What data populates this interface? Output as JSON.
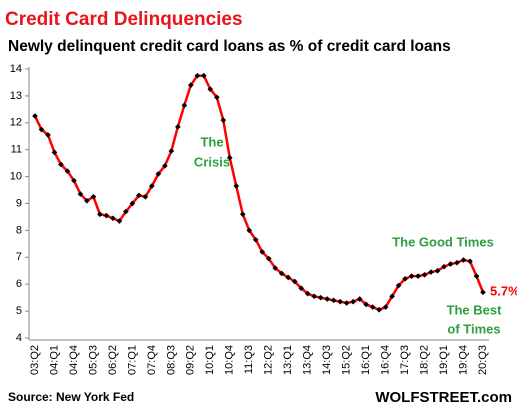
{
  "chart_data": {
    "type": "line",
    "title": "Credit Card  Delinquencies",
    "subtitle": "Newly delinquent credit card loans as % of credit card loans",
    "categories": [
      "03:Q2",
      null,
      null,
      "04:Q1",
      null,
      null,
      "04:Q4",
      null,
      null,
      "05:Q3",
      null,
      null,
      "06:Q2",
      null,
      null,
      "07:Q1",
      null,
      null,
      "07:Q4",
      null,
      null,
      "08:Q3",
      null,
      null,
      "09:Q2",
      null,
      null,
      "10:Q1",
      null,
      null,
      "10:Q4",
      null,
      null,
      "11:Q3",
      null,
      null,
      "12:Q2",
      null,
      null,
      "13:Q1",
      null,
      null,
      "13:Q4",
      null,
      null,
      "14:Q3",
      null,
      null,
      "15:Q2",
      null,
      null,
      "16:Q1",
      null,
      null,
      "16:Q4",
      null,
      null,
      "17:Q3",
      null,
      null,
      "18:Q2",
      null,
      null,
      "19:Q1",
      null,
      null,
      "19:Q4",
      null,
      null,
      "20:Q3"
    ],
    "series": [
      {
        "name": "Newly delinquent credit card loans",
        "color": "#ff0000",
        "marker_color": "#000000",
        "values": [
          12.25,
          11.75,
          11.55,
          10.9,
          10.45,
          10.2,
          9.85,
          9.35,
          9.1,
          9.25,
          8.6,
          8.55,
          8.45,
          8.35,
          8.7,
          9.0,
          9.3,
          9.25,
          9.65,
          10.1,
          10.4,
          10.95,
          11.85,
          12.65,
          13.4,
          13.75,
          13.75,
          13.25,
          12.95,
          12.1,
          10.7,
          9.65,
          8.6,
          8.0,
          7.65,
          7.2,
          6.95,
          6.6,
          6.4,
          6.25,
          6.1,
          5.85,
          5.65,
          5.55,
          5.5,
          5.45,
          5.4,
          5.35,
          5.3,
          5.35,
          5.45,
          5.25,
          5.15,
          5.05,
          5.15,
          5.55,
          5.95,
          6.2,
          6.3,
          6.3,
          6.35,
          6.45,
          6.5,
          6.65,
          6.75,
          6.8,
          6.9,
          6.85,
          6.3,
          5.7
        ],
        "value_labels": [
          null,
          null,
          null,
          null,
          null,
          null,
          null,
          null,
          null,
          null,
          null,
          null,
          null,
          null,
          null,
          null,
          null,
          null,
          null,
          null,
          null,
          null,
          null,
          null,
          null,
          null,
          null,
          null,
          null,
          null,
          null,
          null,
          null,
          null,
          null,
          null,
          null,
          null,
          null,
          null,
          null,
          null,
          null,
          null,
          null,
          null,
          null,
          null,
          null,
          null,
          null,
          null,
          null,
          null,
          null,
          null,
          null,
          null,
          null,
          null,
          null,
          null,
          null,
          null,
          null,
          null,
          null,
          null,
          null,
          "5.7%"
        ]
      }
    ],
    "ylim": [
      4,
      14
    ],
    "yticks": [
      4,
      5,
      6,
      7,
      8,
      9,
      10,
      11,
      12,
      13,
      14
    ],
    "grid": false,
    "annotations": [
      {
        "lines": [
          "The",
          "Crisis"
        ]
      },
      {
        "lines": [
          "The Good Times"
        ]
      },
      {
        "lines": [
          "The Best",
          "of Times"
        ]
      }
    ],
    "source": "Source: New York Fed",
    "brand": "WOLFSTREET.com"
  }
}
